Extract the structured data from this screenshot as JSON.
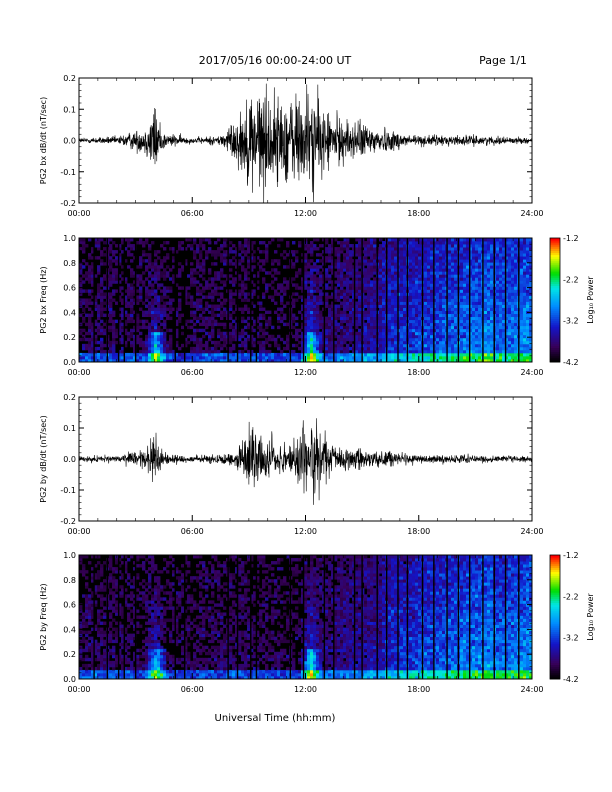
{
  "header": {
    "title": "2017/05/16  00:00-24:00 UT",
    "page": "Page 1/1"
  },
  "x_axis": {
    "label": "Universal Time (hh:mm)",
    "ticks": [
      "00:00",
      "06:00",
      "12:00",
      "18:00",
      "24:00"
    ],
    "range_hours": [
      0,
      24
    ]
  },
  "colorbar": {
    "label": "Log₁₀ Power",
    "ticks": [
      "-1.2",
      "-2.2",
      "-3.2",
      "-4.2"
    ],
    "range": [
      -4.2,
      -1.2
    ]
  },
  "chart_data": [
    {
      "type": "line",
      "panel": "bx-waveform",
      "ylabel": "PG2 bx dB/dt (nT/sec)",
      "xlabel": "",
      "ylim": [
        -0.2,
        0.2
      ],
      "yticks": [
        "0.2",
        "0.1",
        "0.0",
        "-0.1",
        "-0.2"
      ],
      "xlim_hours": [
        0,
        24
      ],
      "activity_envelope": {
        "x": [
          0,
          2,
          3.5,
          4,
          4.5,
          6,
          7.5,
          8.5,
          9.2,
          9.8,
          10.5,
          11.5,
          12.3,
          13,
          14,
          15.5,
          16.5,
          18,
          20,
          22,
          24
        ],
        "y": [
          0.01,
          0.015,
          0.05,
          0.14,
          0.03,
          0.01,
          0.02,
          0.1,
          0.2,
          0.2,
          0.16,
          0.18,
          0.2,
          0.12,
          0.08,
          0.06,
          0.04,
          0.02,
          0.02,
          0.015,
          0.01
        ]
      }
    },
    {
      "type": "heatmap",
      "panel": "bx-spectrogram",
      "ylabel": "PG2 bx Freq (Hz)",
      "xlabel": "",
      "ylim": [
        0,
        1.0
      ],
      "yticks": [
        "1.0",
        "0.8",
        "0.6",
        "0.4",
        "0.2",
        "0.0"
      ],
      "xlim_hours": [
        0,
        24
      ],
      "zlim": [
        -4.2,
        -1.2
      ],
      "data_gap_hours": [
        0.8,
        1.5,
        2.1,
        2.4,
        3.0,
        5.1,
        5.6,
        7.9,
        8.4,
        9.1,
        9.4,
        11.2,
        11.9,
        13.0,
        13.5,
        14.6,
        15.0,
        15.8,
        16.3,
        16.9,
        17.4,
        18.2,
        18.8,
        19.5,
        20.1,
        20.7,
        21.4,
        22.0,
        22.6,
        23.3
      ],
      "bright_events_hours": [
        4.1,
        12.3
      ]
    },
    {
      "type": "line",
      "panel": "by-waveform",
      "ylabel": "PG2 by dB/dt (nT/sec)",
      "xlabel": "",
      "ylim": [
        -0.2,
        0.2
      ],
      "yticks": [
        "0.2",
        "0.1",
        "0.0",
        "-0.1",
        "-0.2"
      ],
      "xlim_hours": [
        0,
        24
      ],
      "activity_envelope": {
        "x": [
          0,
          2,
          3.5,
          4,
          4.5,
          6,
          7.5,
          8.5,
          9.2,
          9.8,
          10.5,
          11.5,
          12.3,
          13,
          14,
          15.5,
          16.5,
          18,
          20,
          22,
          24
        ],
        "y": [
          0.01,
          0.012,
          0.04,
          0.1,
          0.025,
          0.01,
          0.02,
          0.05,
          0.12,
          0.1,
          0.06,
          0.08,
          0.2,
          0.08,
          0.04,
          0.04,
          0.03,
          0.015,
          0.015,
          0.012,
          0.01
        ]
      }
    },
    {
      "type": "heatmap",
      "panel": "by-spectrogram",
      "ylabel": "PG2 by Freq (Hz)",
      "xlabel": "",
      "ylim": [
        0,
        1.0
      ],
      "yticks": [
        "1.0",
        "0.8",
        "0.6",
        "0.4",
        "0.2",
        "0.0"
      ],
      "xlim_hours": [
        0,
        24
      ],
      "zlim": [
        -4.2,
        -1.2
      ],
      "data_gap_hours": [
        0.8,
        1.5,
        2.1,
        2.4,
        3.0,
        5.1,
        5.6,
        7.9,
        8.4,
        9.1,
        9.4,
        11.2,
        11.9,
        13.0,
        13.5,
        14.6,
        15.0,
        15.8,
        16.3,
        16.9,
        17.4,
        18.2,
        18.8,
        19.5,
        20.1,
        20.7,
        21.4,
        22.0,
        22.6,
        23.3
      ],
      "bright_events_hours": [
        4.1,
        12.3
      ]
    }
  ]
}
